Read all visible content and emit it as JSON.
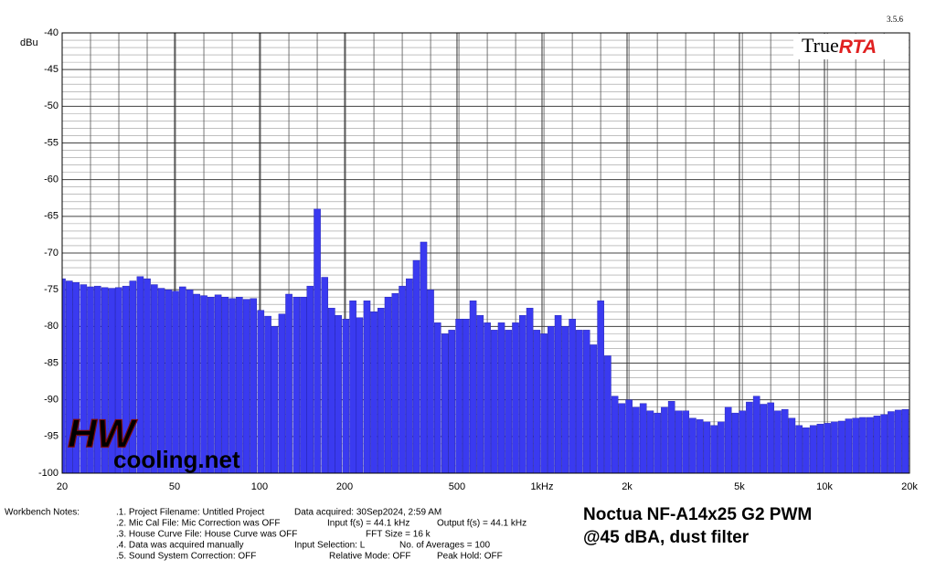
{
  "chart_data": {
    "type": "bar",
    "y_label": "dBu",
    "version": "3.5.6",
    "logo": {
      "left": "True",
      "right": "RTA"
    },
    "annotation": [
      "Noctua NF-A14x25 G2 PWM",
      "@45 dBA, dust filter"
    ],
    "watermark": {
      "left": "HW",
      "right": "cooling.net"
    },
    "color": "#3a3af0",
    "log_x": true,
    "grid": true,
    "xlim": [
      20,
      20000
    ],
    "ylim": [
      -100,
      -40
    ],
    "xticks": [
      20,
      50,
      100,
      200,
      500,
      {
        "value": 1000,
        "label": "1kHz"
      },
      {
        "value": 2000,
        "label": "2k"
      },
      {
        "value": 5000,
        "label": "5k"
      },
      {
        "value": 10000,
        "label": "10k"
      },
      {
        "value": 20000,
        "label": "20k"
      }
    ],
    "yticks": [
      -40,
      -45,
      -50,
      -55,
      -60,
      -65,
      -70,
      -75,
      -80,
      -85,
      -90,
      -95,
      -100
    ],
    "x": [
      20,
      21.2,
      22.4,
      23.8,
      25.2,
      26.7,
      28.3,
      30,
      31.7,
      33.6,
      35.6,
      37.8,
      40,
      42.4,
      44.9,
      47.6,
      50.4,
      53.4,
      56.6,
      59.9,
      63.5,
      67.3,
      71.3,
      75.5,
      80,
      84.8,
      89.8,
      95.1,
      101,
      107,
      113,
      120,
      127,
      135,
      143,
      151,
      160,
      170,
      180,
      190,
      202,
      214,
      226,
      240,
      254,
      269,
      285,
      302,
      320,
      339,
      359,
      381,
      403,
      427,
      453,
      479,
      508,
      538,
      570,
      604,
      640,
      678,
      718,
      761,
      806,
      854,
      905,
      959,
      1016,
      1076,
      1140,
      1208,
      1280,
      1356,
      1437,
      1522,
      1613,
      1709,
      1810,
      1918,
      2032,
      2153,
      2281,
      2417,
      2560,
      2713,
      2874,
      3045,
      3226,
      3418,
      3621,
      3836,
      4064,
      4306,
      4562,
      4833,
      5120,
      5425,
      5747,
      6089,
      6451,
      6835,
      7241,
      7671,
      8127,
      8611,
      9123,
      9665,
      10240,
      10849,
      11494,
      12177,
      12902,
      13669,
      14482,
      15342,
      16255,
      17222,
      18246,
      19331
    ],
    "values": [
      -73.5,
      -73.8,
      -74,
      -74.3,
      -74.6,
      -74.5,
      -74.7,
      -74.8,
      -74.7,
      -74.5,
      -73.8,
      -73.2,
      -73.5,
      -74.3,
      -74.8,
      -75,
      -75.2,
      -74.6,
      -75,
      -75.6,
      -75.8,
      -76,
      -75.7,
      -76,
      -76.2,
      -76,
      -76.3,
      -76.2,
      -77.8,
      -78.6,
      -80,
      -78.3,
      -75.6,
      -76,
      -76,
      -74.5,
      -64,
      -73.3,
      -77.5,
      -78.5,
      -79,
      -76.5,
      -78.8,
      -76.5,
      -78,
      -77.5,
      -76,
      -75.5,
      -74.5,
      -73.5,
      -71,
      -68.5,
      -75,
      -79.5,
      -81,
      -80.5,
      -79,
      -79,
      -76.5,
      -78.5,
      -79.5,
      -80.5,
      -79.5,
      -80.5,
      -79.5,
      -78.5,
      -77.5,
      -80.5,
      -81,
      -80,
      -78.5,
      -80,
      -79,
      -80.5,
      -80.5,
      -82.5,
      -76.5,
      -84,
      -89.5,
      -90.5,
      -90,
      -91,
      -90.5,
      -91.5,
      -91.8,
      -91,
      -90.2,
      -91.5,
      -91.5,
      -92.5,
      -92.7,
      -93,
      -93.5,
      -93,
      -91,
      -91.8,
      -91.5,
      -90.3,
      -89.5,
      -90.6,
      -90.4,
      -91.5,
      -91.3,
      -92.5,
      -93.5,
      -93.8,
      -93.5,
      -93.3,
      -93.2,
      -93,
      -92.9,
      -92.6,
      -92.5,
      -92.4,
      -92.4,
      -92.2,
      -92,
      -91.6,
      -91.4,
      -91.3
    ]
  },
  "notes": {
    "label": "Workbench Notes:",
    "lines": [
      [
        ".1. Project Filename: Untitled Project",
        "Data acquired: 30Sep2024, 2:59 AM"
      ],
      [
        ".2. Mic Cal File: Mic Correction was OFF",
        "Input f(s) = 44.1 kHz",
        "Output f(s) = 44.1 kHz"
      ],
      [
        ".3. House Curve File: House Curve was OFF",
        "FFT Size = 16 k"
      ],
      [
        ".4. Data was acquired manually",
        "Input Selection: L",
        "No. of Averages = 100"
      ],
      [
        ".5. Sound System Correction: OFF",
        "Relative Mode:  OFF",
        "Peak Hold: OFF"
      ]
    ]
  }
}
